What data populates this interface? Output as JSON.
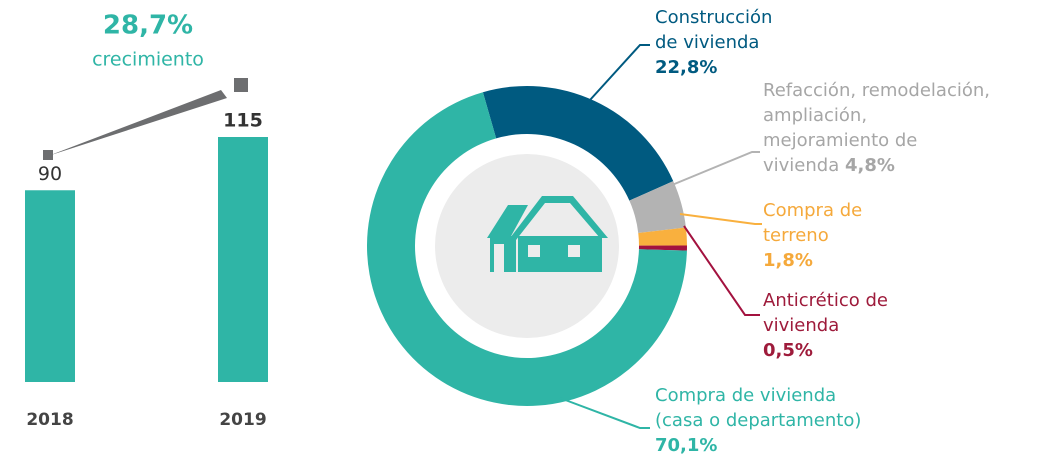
{
  "chart_data": [
    {
      "type": "bar",
      "title": "28,7%",
      "subtitle": "crecimiento",
      "categories": [
        "2018",
        "2019"
      ],
      "values": [
        90,
        115
      ],
      "color": "#2fb5a6"
    },
    {
      "type": "donut",
      "categories": [
        "Construcción\nde vivienda",
        "Refacción, remodelación,\nampliación,\nmejoramiento de\nvivienda",
        "Compra de\nterreno",
        "Anticrético de\nvivienda",
        "Compra de vivienda\n(casa o departamento)"
      ],
      "values": [
        22.8,
        4.8,
        1.8,
        0.5,
        70.1
      ],
      "value_labels": [
        "22,8%",
        "4,8%",
        "1,8%",
        "0,5%",
        "70,1%"
      ],
      "colors": [
        "#005a80",
        "#b3b3b3",
        "#f9b03e",
        "#a3123f",
        "#2fb5a6"
      ]
    }
  ]
}
